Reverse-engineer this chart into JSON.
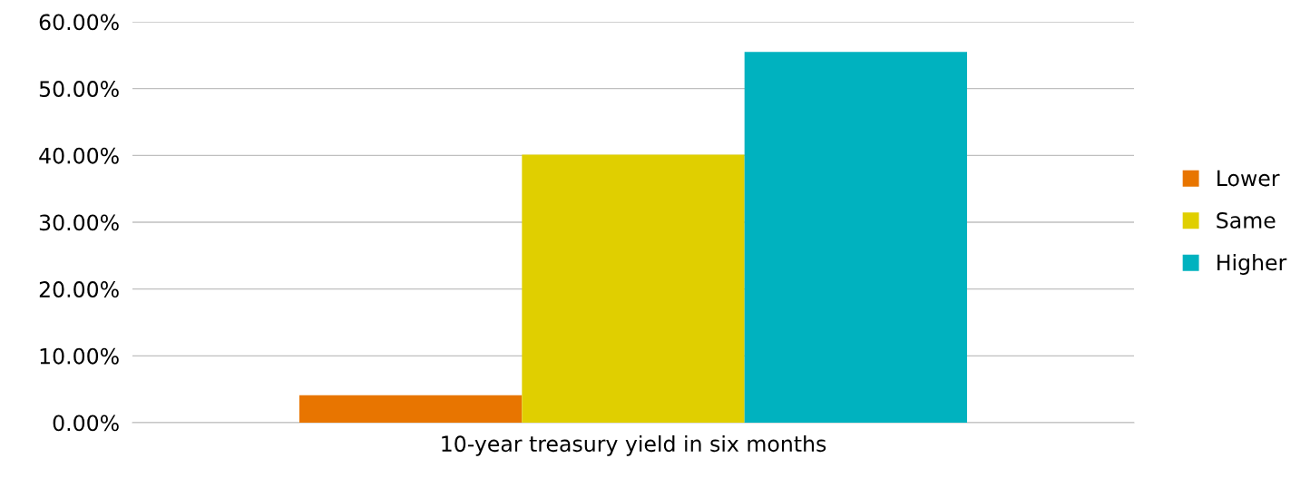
{
  "chart_data": {
    "type": "bar",
    "categories": [
      "10-year treasury yield in six months"
    ],
    "series": [
      {
        "name": "Lower",
        "color": "#e87500",
        "values": [
          4.1
        ]
      },
      {
        "name": "Same",
        "color": "#e0cf00",
        "values": [
          40.1
        ]
      },
      {
        "name": "Higher",
        "color": "#00b2bf",
        "values": [
          55.5
        ]
      }
    ],
    "ylim": [
      0,
      60
    ],
    "yticks": [
      {
        "value": 0,
        "label": "0.00%"
      },
      {
        "value": 10,
        "label": "10.00%"
      },
      {
        "value": 20,
        "label": "20.00%"
      },
      {
        "value": 30,
        "label": "30.00%"
      },
      {
        "value": 40,
        "label": "40.00%"
      },
      {
        "value": 50,
        "label": "50.00%"
      },
      {
        "value": 60,
        "label": "60.00%"
      }
    ],
    "grid": "y",
    "legend": "right"
  }
}
